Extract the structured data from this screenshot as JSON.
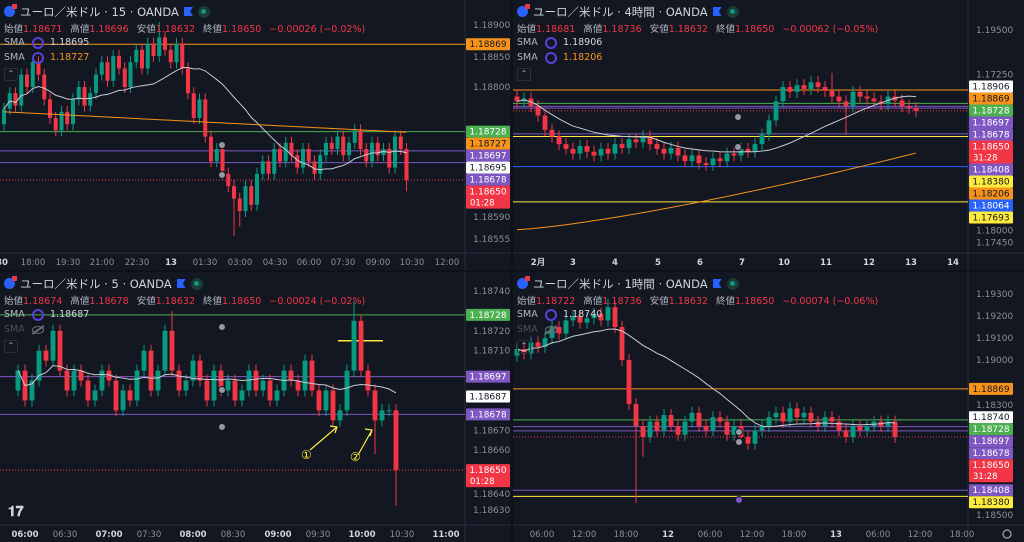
{
  "panels": [
    {
      "title": "ユーロ／米ドル · 15 · OANDA",
      "ohlc": {
        "open_label": "始値",
        "open": "1.18671",
        "high_label": "高値",
        "high": "1.18696",
        "low_label": "安値",
        "low": "1.18632",
        "close_label": "終値",
        "close": "1.18650",
        "change": "−0.00026 (−0.02%)"
      },
      "sma": [
        {
          "label": "SMA",
          "value": "1.18695",
          "color": "#d1d4dc",
          "visible": true
        },
        {
          "label": "SMA",
          "value": "1.18727",
          "color": "#f7931a",
          "visible": true
        }
      ],
      "price_ticks": [
        "1.18900",
        "1.18850",
        "1.18800",
        "1.18590",
        "1.18555"
      ],
      "time_ticks": [
        "30",
        "18:00",
        "19:30",
        "21:00",
        "22:30",
        "13",
        "01:30",
        "03:00",
        "04:30",
        "06:00",
        "07:30",
        "09:00",
        "10:30",
        "12:00"
      ],
      "tags": [
        {
          "value": "1.18869",
          "bg": "#f7931a",
          "fg": "#131722"
        },
        {
          "value": "1.18728",
          "bg": "#4caf50",
          "fg": "#ffffff"
        },
        {
          "value": "1.18727",
          "bg": "#f7931a",
          "fg": "#131722"
        },
        {
          "value": "1.18697",
          "bg": "#7e57c2",
          "fg": "#ffffff"
        },
        {
          "value": "1.18695",
          "bg": "#ffffff",
          "fg": "#131722"
        },
        {
          "value": "1.18678",
          "bg": "#7e57c2",
          "fg": "#ffffff"
        },
        {
          "value": "1.18650",
          "bg": "#f23645",
          "fg": "#ffffff",
          "countdown": "01:28"
        }
      ]
    },
    {
      "title": "ユーロ／米ドル · 4時間 · OANDA",
      "ohlc": {
        "open_label": "始値",
        "open": "1.18681",
        "high_label": "高値",
        "high": "1.18736",
        "low_label": "安値",
        "low": "1.18632",
        "close_label": "終値",
        "close": "1.18650",
        "change": "−0.00062 (−0.05%)"
      },
      "sma": [
        {
          "label": "SMA",
          "value": "1.18906",
          "color": "#d1d4dc",
          "visible": true
        },
        {
          "label": "SMA",
          "value": "1.18206",
          "color": "#f7931a",
          "visible": true
        }
      ],
      "price_ticks": [
        "1.19500",
        "1.18000",
        "1.17450",
        "1.17250"
      ],
      "time_ticks": [
        "2月",
        "3",
        "4",
        "5",
        "6",
        "7",
        "10",
        "11",
        "12",
        "13",
        "14"
      ],
      "tags": [
        {
          "value": "1.18906",
          "bg": "#ffffff",
          "fg": "#131722"
        },
        {
          "value": "1.18869",
          "bg": "#f7931a",
          "fg": "#131722"
        },
        {
          "value": "1.18728",
          "bg": "#4caf50",
          "fg": "#ffffff"
        },
        {
          "value": "1.18697",
          "bg": "#7e57c2",
          "fg": "#ffffff"
        },
        {
          "value": "1.18678",
          "bg": "#7e57c2",
          "fg": "#ffffff"
        },
        {
          "value": "1.18650",
          "bg": "#f23645",
          "fg": "#ffffff",
          "countdown": "31:28"
        },
        {
          "value": "1.18408",
          "bg": "#7e57c2",
          "fg": "#ffffff"
        },
        {
          "value": "1.18380",
          "bg": "#ffeb3b",
          "fg": "#131722"
        },
        {
          "value": "1.18206",
          "bg": "#f7931a",
          "fg": "#131722"
        },
        {
          "value": "1.18064",
          "bg": "#2962ff",
          "fg": "#ffffff"
        },
        {
          "value": "1.17693",
          "bg": "#ffeb3b",
          "fg": "#131722"
        }
      ]
    },
    {
      "title": "ユーロ／米ドル · 5 · OANDA",
      "ohlc": {
        "open_label": "始値",
        "open": "1.18674",
        "high_label": "高値",
        "high": "1.18678",
        "low_label": "安値",
        "low": "1.18632",
        "close_label": "終値",
        "close": "1.18650",
        "change": "−0.00024 (−0.02%)"
      },
      "sma": [
        {
          "label": "SMA",
          "value": "1.18687",
          "color": "#d1d4dc",
          "visible": true
        },
        {
          "label": "SMA",
          "value": "",
          "color": "#4a4e59",
          "visible": false
        }
      ],
      "price_ticks": [
        "1.18740",
        "1.18720",
        "1.18710",
        "1.18670",
        "1.18660",
        "1.18640",
        "1.18630"
      ],
      "time_ticks": [
        "06:00",
        "06:30",
        "07:00",
        "07:30",
        "08:00",
        "08:30",
        "09:00",
        "09:30",
        "10:00",
        "10:30",
        "11:00"
      ],
      "tags": [
        {
          "value": "1.18728",
          "bg": "#4caf50",
          "fg": "#ffffff"
        },
        {
          "value": "1.18697",
          "bg": "#7e57c2",
          "fg": "#ffffff"
        },
        {
          "value": "1.18687",
          "bg": "#ffffff",
          "fg": "#131722"
        },
        {
          "value": "1.18678",
          "bg": "#7e57c2",
          "fg": "#ffffff"
        },
        {
          "value": "1.18650",
          "bg": "#f23645",
          "fg": "#ffffff",
          "countdown": "01:28"
        }
      ],
      "annotations": {
        "mark1": "①",
        "mark2": "②"
      },
      "logo": "TV"
    },
    {
      "title": "ユーロ／米ドル · 1時間 · OANDA",
      "ohlc": {
        "open_label": "始値",
        "open": "1.18722",
        "high_label": "高値",
        "high": "1.18736",
        "low_label": "安値",
        "low": "1.18632",
        "close_label": "終値",
        "close": "1.18650",
        "change": "−0.00074 (−0.06%)"
      },
      "sma": [
        {
          "label": "SMA",
          "value": "1.18740",
          "color": "#d1d4dc",
          "visible": true
        },
        {
          "label": "SMA",
          "value": "",
          "color": "#4a4e59",
          "visible": false
        }
      ],
      "price_ticks": [
        "1.19300",
        "1.19200",
        "1.19100",
        "1.19000",
        "1.18500",
        "1.18300"
      ],
      "time_ticks": [
        "06:00",
        "12:00",
        "18:00",
        "12",
        "06:00",
        "12:00",
        "18:00",
        "13",
        "06:00",
        "12:00",
        "18:00"
      ],
      "tags": [
        {
          "value": "1.18869",
          "bg": "#f7931a",
          "fg": "#131722"
        },
        {
          "value": "1.18740",
          "bg": "#ffffff",
          "fg": "#131722"
        },
        {
          "value": "1.18728",
          "bg": "#4caf50",
          "fg": "#ffffff"
        },
        {
          "value": "1.18697",
          "bg": "#7e57c2",
          "fg": "#ffffff"
        },
        {
          "value": "1.18678",
          "bg": "#7e57c2",
          "fg": "#ffffff"
        },
        {
          "value": "1.18650",
          "bg": "#f23645",
          "fg": "#ffffff",
          "countdown": "31:28"
        },
        {
          "value": "1.18408",
          "bg": "#7e57c2",
          "fg": "#ffffff"
        },
        {
          "value": "1.18380",
          "bg": "#ffeb3b",
          "fg": "#131722"
        }
      ],
      "settings_icon": "gear-icon"
    }
  ],
  "colors": {
    "up": "#089981",
    "down": "#f23645",
    "bg": "#131722",
    "grid": "#1e222d",
    "text": "#b2b5be"
  },
  "chart_data": [
    {
      "type": "candlestick",
      "timeframe": "15",
      "open_first": 1.1874,
      "closes": [
        1.18765,
        1.1879,
        1.1877,
        1.1882,
        1.188,
        1.1884,
        1.1882,
        1.1878,
        1.1875,
        1.1873,
        1.1876,
        1.1874,
        1.1878,
        1.188,
        1.1877,
        1.1879,
        1.1882,
        1.1884,
        1.1881,
        1.1885,
        1.1883,
        1.188,
        1.1884,
        1.1886,
        1.1883,
        1.1887,
        1.1885,
        1.1888,
        1.1886,
        1.1884,
        1.1887,
        1.1883,
        1.1879,
        1.1875,
        1.1878,
        1.1872,
        1.1868,
        1.187,
        1.1866,
        1.1864,
        1.1862,
        1.186,
        1.1864,
        1.1861,
        1.1866,
        1.1868,
        1.1866,
        1.187,
        1.1868,
        1.1871,
        1.1869,
        1.1867,
        1.187,
        1.1868,
        1.1866,
        1.1869,
        1.1871,
        1.187,
        1.1872,
        1.1869,
        1.1871,
        1.1873,
        1.187,
        1.1868,
        1.1871,
        1.1869,
        1.187,
        1.1867,
        1.1872,
        1.187,
        1.1865
      ],
      "long_wicks": [
        {
          "index": 27,
          "high": 1.18905
        },
        {
          "index": 40,
          "low": 1.1856
        },
        {
          "index": 41,
          "low": 1.18575
        },
        {
          "index": 70,
          "low": 1.18632
        }
      ],
      "sma_long": {
        "start": 1.1876,
        "end": 1.18727
      },
      "hlines": [
        {
          "price": 1.18869,
          "color": "#f7931a"
        },
        {
          "price": 1.18728,
          "color": "#4caf50"
        },
        {
          "price": 1.18697,
          "color": "#7e57c2"
        },
        {
          "price": 1.18678,
          "color": "#7e57c2"
        },
        {
          "price": 1.1865,
          "color": "#f23645",
          "dotted": true
        }
      ]
    },
    {
      "type": "candlestick",
      "timeframe": "4時間",
      "open_first": 1.188,
      "closes": [
        1.1875,
        1.1878,
        1.187,
        1.186,
        1.1845,
        1.1838,
        1.183,
        1.1825,
        1.182,
        1.1828,
        1.1822,
        1.1818,
        1.1825,
        1.182,
        1.183,
        1.1826,
        1.1835,
        1.1832,
        1.1838,
        1.183,
        1.1825,
        1.182,
        1.1826,
        1.1818,
        1.1812,
        1.1818,
        1.181,
        1.1808,
        1.1815,
        1.1812,
        1.182,
        1.1818,
        1.1825,
        1.1822,
        1.183,
        1.184,
        1.1855,
        1.1875,
        1.189,
        1.1885,
        1.1892,
        1.1888,
        1.1895,
        1.189,
        1.1886,
        1.188,
        1.1875,
        1.187,
        1.1885,
        1.188,
        1.1878,
        1.1875,
        1.1872,
        1.188,
        1.1876,
        1.187,
        1.1868,
        1.1865
      ],
      "long_wicks": [
        {
          "index": 45,
          "high": 1.1905
        },
        {
          "index": 47,
          "low": 1.184
        }
      ],
      "sma_long": {
        "start": 1.174,
        "end": 1.18206
      },
      "hlines": [
        {
          "price": 1.18869,
          "color": "#f7931a"
        },
        {
          "price": 1.18728,
          "color": "#4caf50"
        },
        {
          "price": 1.18697,
          "color": "#7e57c2"
        },
        {
          "price": 1.18678,
          "color": "#7e57c2"
        },
        {
          "price": 1.1865,
          "color": "#f23645",
          "dotted": true
        },
        {
          "price": 1.18408,
          "color": "#7e57c2"
        },
        {
          "price": 1.1838,
          "color": "#ffeb3b"
        },
        {
          "price": 1.18064,
          "color": "#2962ff"
        },
        {
          "price": 1.17693,
          "color": "#ffeb3b"
        }
      ]
    },
    {
      "type": "candlestick",
      "timeframe": "5",
      "open_first": 1.1869,
      "closes": [
        1.187,
        1.18685,
        1.18695,
        1.1871,
        1.18705,
        1.1872,
        1.187,
        1.1869,
        1.187,
        1.18695,
        1.18685,
        1.1869,
        1.187,
        1.18695,
        1.1868,
        1.1869,
        1.18685,
        1.187,
        1.1871,
        1.1869,
        1.187,
        1.1872,
        1.187,
        1.1869,
        1.18695,
        1.18705,
        1.18695,
        1.18685,
        1.187,
        1.1869,
        1.18695,
        1.18685,
        1.1869,
        1.187,
        1.1869,
        1.18695,
        1.18685,
        1.1869,
        1.187,
        1.18695,
        1.1869,
        1.18705,
        1.1869,
        1.1868,
        1.1869,
        1.18675,
        1.1868,
        1.187,
        1.18725,
        1.187,
        1.1869,
        1.18675,
        1.1868,
        1.1868,
        1.1865
      ],
      "long_wicks": [
        {
          "index": 22,
          "high": 1.1873
        },
        {
          "index": 48,
          "high": 1.18735
        },
        {
          "index": 51,
          "low": 1.18658
        },
        {
          "index": 54,
          "low": 1.18632
        }
      ],
      "hlines": [
        {
          "price": 1.18728,
          "color": "#4caf50"
        },
        {
          "price": 1.18697,
          "color": "#7e57c2"
        },
        {
          "price": 1.18678,
          "color": "#7e57c2"
        },
        {
          "price": 1.1865,
          "color": "#f23645",
          "dotted": true
        },
        {
          "price": 1.18715,
          "color": "#ffeb3b",
          "segment": true
        }
      ]
    },
    {
      "type": "candlestick",
      "timeframe": "1時間",
      "open_first": 1.1902,
      "closes": [
        1.1905,
        1.1903,
        1.1908,
        1.1906,
        1.191,
        1.1915,
        1.1912,
        1.1918,
        1.192,
        1.1917,
        1.1919,
        1.1921,
        1.1918,
        1.1924,
        1.1915,
        1.19,
        1.188,
        1.187,
        1.1865,
        1.1872,
        1.1868,
        1.1875,
        1.187,
        1.1866,
        1.1872,
        1.1876,
        1.187,
        1.1868,
        1.1874,
        1.1872,
        1.1866,
        1.187,
        1.1865,
        1.1862,
        1.1868,
        1.187,
        1.1874,
        1.1876,
        1.1872,
        1.1878,
        1.1874,
        1.1876,
        1.1872,
        1.187,
        1.1874,
        1.1872,
        1.1868,
        1.1865,
        1.187,
        1.1868,
        1.187,
        1.1872,
        1.187,
        1.1872,
        1.1865
      ],
      "long_wicks": [
        {
          "index": 13,
          "high": 1.1928
        },
        {
          "index": 17,
          "low": 1.1835
        },
        {
          "index": 18,
          "low": 1.1856
        }
      ],
      "hlines": [
        {
          "price": 1.18869,
          "color": "#f7931a"
        },
        {
          "price": 1.18728,
          "color": "#4caf50"
        },
        {
          "price": 1.18697,
          "color": "#7e57c2"
        },
        {
          "price": 1.18678,
          "color": "#7e57c2"
        },
        {
          "price": 1.1865,
          "color": "#f23645",
          "dotted": true
        },
        {
          "price": 1.18408,
          "color": "#7e57c2"
        },
        {
          "price": 1.1838,
          "color": "#ffeb3b"
        }
      ]
    }
  ]
}
